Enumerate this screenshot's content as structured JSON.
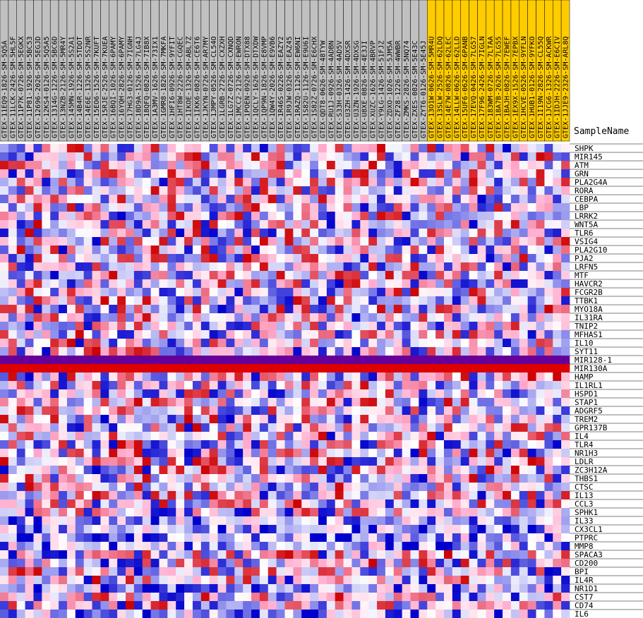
{
  "chart_data": {
    "type": "heatmap",
    "title": "",
    "column_header_label": "SampleName",
    "colormap": {
      "low": "#0000cc",
      "mid_low": "#9999ee",
      "mid": "#ffffff",
      "mid_high": "#ffaacc",
      "high": "#cc0000"
    },
    "group_colors": {
      "group_a": "#c0c0c0",
      "group_b": "#ffcc00"
    },
    "columns": [
      {
        "name": "GTEX-11EQ9-1826-SM-5Q5A",
        "group": "group_a"
      },
      {
        "name": "GTEX-11LCK-2426-SM-5HL5F",
        "group": "group_a"
      },
      {
        "name": "GTEX-11P7K-0726-SM-5EGKX",
        "group": "group_a"
      },
      {
        "name": "GTEX-11P81-1926-SM-5BC53",
        "group": "group_a"
      },
      {
        "name": "GTEX-12696-2026-SM-5EGJD",
        "group": "group_a"
      },
      {
        "name": "GTEX-12KS4-0126-SM-5Q5A5",
        "group": "group_a"
      },
      {
        "name": "GTEX-1314G-1226-SM-5BC6D",
        "group": "group_a"
      },
      {
        "name": "GTEX-13NZB-2126-SM-5MR4Y",
        "group": "group_a"
      },
      {
        "name": "GTEX-145MN-1926-SM-5S2A1",
        "group": "group_a"
      },
      {
        "name": "GTEX-14B4R-1226-SM-5TDDT",
        "group": "group_a"
      },
      {
        "name": "GTEX-14E6E-1326-SM-5S2NR",
        "group": "group_a"
      },
      {
        "name": "GTEX-15EO6-1526-SM-7KUFT",
        "group": "group_a"
      },
      {
        "name": "GTEX-15RJE-2526-SM-7KUEA",
        "group": "group_a"
      },
      {
        "name": "GTEX-16BQI-1026-SM-6PAMY",
        "group": "group_a"
      },
      {
        "name": "GTEX-16YQH-2826-SM-6PAMY",
        "group": "group_a"
      },
      {
        "name": "GTEX-17HG3-0126-SM-7IGNH",
        "group": "group_a"
      },
      {
        "name": "GTEX-18D9A-1526-SM-7LG4J",
        "group": "group_a"
      },
      {
        "name": "GTEX-18QFQ-0826-SM-7IB8X",
        "group": "group_a"
      },
      {
        "name": "GTEX-1A3MV-1626-SM-73IX1",
        "group": "group_a"
      },
      {
        "name": "GTEX-1GMR8-1826-SM-7MKFA",
        "group": "group_a"
      },
      {
        "name": "GTEX-1HFI6-0926-SM-9YFIT",
        "group": "group_a"
      },
      {
        "name": "GTEX-1HT8W-2226-SM-CGQEC",
        "group": "group_a"
      },
      {
        "name": "GTEX-1IKOE-1326-SM-ABL7Z",
        "group": "group_a"
      },
      {
        "name": "GTEX-1IKK6-0826-SM-CE6T6",
        "group": "group_a"
      },
      {
        "name": "GTEX-1JKYN-0726-SM-AR7MY",
        "group": "group_a"
      },
      {
        "name": "GTEX-1JMPY-0526-SM-CL54O",
        "group": "group_a"
      },
      {
        "name": "GTEX-1LGRB-2726-SM-CXZXH",
        "group": "group_a"
      },
      {
        "name": "GTEX-1LG7Z-0726-SM-CXNQD",
        "group": "group_a"
      },
      {
        "name": "GTEX-1MCC2-2126-SM-EWRON",
        "group": "group_a"
      },
      {
        "name": "GTEX-1POEN-0926-SM-DTX88",
        "group": "group_a"
      },
      {
        "name": "GTEX-1QCLY-1626-SM-DTXDW",
        "group": "group_a"
      },
      {
        "name": "GTEX-1QP9N-1826-SM-E8VMP",
        "group": "group_a"
      },
      {
        "name": "GTEX-1QW4Y-2026-SM-E9VB6",
        "group": "group_a"
      },
      {
        "name": "GTEX-1R46S-0226-SM-EAZY2",
        "group": "group_a"
      },
      {
        "name": "GTEX-1R9JW-0326-SM-EAZ45",
        "group": "group_a"
      },
      {
        "name": "GTEX-1RAZQ-1126-SM-EW6NI",
        "group": "group_a"
      },
      {
        "name": "GTEX-1S82U-1126-SM-E9U6I",
        "group": "group_a"
      },
      {
        "name": "GTEX-1S82Z-0726-SM-E6CHX",
        "group": "group_a"
      },
      {
        "name": "GTEX-QDT8-0626-SM-48TYW",
        "group": "group_a"
      },
      {
        "name": "GTEX-RU1J-0926-SM-4ADBN",
        "group": "group_a"
      },
      {
        "name": "GTEX-S33H-0326-SM-4AD5V",
        "group": "group_a"
      },
      {
        "name": "GTEX-U3ZH-1426-SM-4DXSR",
        "group": "group_a"
      },
      {
        "name": "GTEX-U3ZN-1926-SM-4DXSG",
        "group": "group_a"
      },
      {
        "name": "GTEX-U8XE-0826-SM-4E3JI",
        "group": "group_a"
      },
      {
        "name": "GTEX-XUZC-1626-SM-4BRVP",
        "group": "group_a"
      },
      {
        "name": "GTEX-Y9LG-1426-SM-51FJZ",
        "group": "group_a"
      },
      {
        "name": "GTEX-ZDXO-1026-SM-5JM5A",
        "group": "group_a"
      },
      {
        "name": "GTEX-ZF28-1226-SM-4WWBR",
        "group": "group_a"
      },
      {
        "name": "GTEX-ZMKS-2826-SM-5NQ74",
        "group": "group_a"
      },
      {
        "name": "GTEX-ZXES-0826-SM-5E43C",
        "group": "group_a"
      },
      {
        "name": "GTEX-ZYT6-0126-SM-5E45J",
        "group": "group_a"
      },
      {
        "name": "GTEX-13O1W-0626-SM-5MR4U",
        "group": "group_b"
      },
      {
        "name": "GTEX-13SLW-2526-SM-62LDQ",
        "group": "group_b"
      },
      {
        "name": "GTEX-14E7W-0826-SM-62LEC",
        "group": "group_b"
      },
      {
        "name": "GTEX-14LLW-0626-SM-62LLD",
        "group": "group_b"
      },
      {
        "name": "GTEX-15UF6-0626-SM-6PANB",
        "group": "group_b"
      },
      {
        "name": "GTEX-17EVQ-0426-SM-7LG57",
        "group": "group_b"
      },
      {
        "name": "GTEX-17F96-2426-SM-7IGLN",
        "group": "group_b"
      },
      {
        "name": "GTEX-183WM-0726-SM-7LTAA",
        "group": "group_b"
      },
      {
        "name": "GTEX-18A7B-2626-SM-7LG55",
        "group": "group_b"
      },
      {
        "name": "GTEX-1BAJH-0826-SM-7EWEF",
        "group": "group_b"
      },
      {
        "name": "GTEX-1EX9X-1526-SM-7EPBX",
        "group": "group_b"
      },
      {
        "name": "GTEX-1HCVE-0526-SM-9YFLN",
        "group": "group_b"
      },
      {
        "name": "GTEX-1HUB1-0126-SM-9YFKO",
        "group": "group_b"
      },
      {
        "name": "GTEX-1I19N-2826-SM-CL55Q",
        "group": "group_b"
      },
      {
        "name": "GTEX-1JCG6-1326-SM-ACKWR",
        "group": "group_b"
      },
      {
        "name": "GTEX-1IDJH-2226-SM-E6CIV",
        "group": "group_b"
      },
      {
        "name": "GTEX-1JJE9-2326-SM-ARL8Q",
        "group": "group_b"
      }
    ],
    "rows": [
      "SHPK",
      "MIR145",
      "ATM",
      "GRN",
      "PLA2G4A",
      "RORA",
      "CEBPA",
      "LBP",
      "LRRK2",
      "WNT5A",
      "TLR6",
      "VSIG4",
      "PLA2G10",
      "PJA2",
      "LRFN5",
      "MTF",
      "HAVCR2",
      "FCGR2B",
      "TTBK1",
      "MYO18A",
      "IL31RA",
      "TNIP2",
      "MFHAS1",
      "IL10",
      "SYT11",
      "MIR128-1",
      "MIR130A",
      "HAMP",
      "IL1RL1",
      "HSPD1",
      "STAP1",
      "ADGRF5",
      "TREM2",
      "GPR137B",
      "IL4",
      "TLR4",
      "NR1H3",
      "LDLR",
      "ZC3H12A",
      "THBS1",
      "CTSC",
      "IL13",
      "CCL3",
      "SPHK1",
      "IL33",
      "CX3CL1",
      "PTPRC",
      "MMP8",
      "SPACA3",
      "CD200",
      "BPI",
      "IL4R",
      "NR1D1",
      "CST7",
      "CD74",
      "IL6"
    ],
    "value_range": [
      -1,
      1
    ],
    "constant_rows": {
      "MIR128-1": 0.0,
      "MIR130A": 1.0
    },
    "values": []
  }
}
